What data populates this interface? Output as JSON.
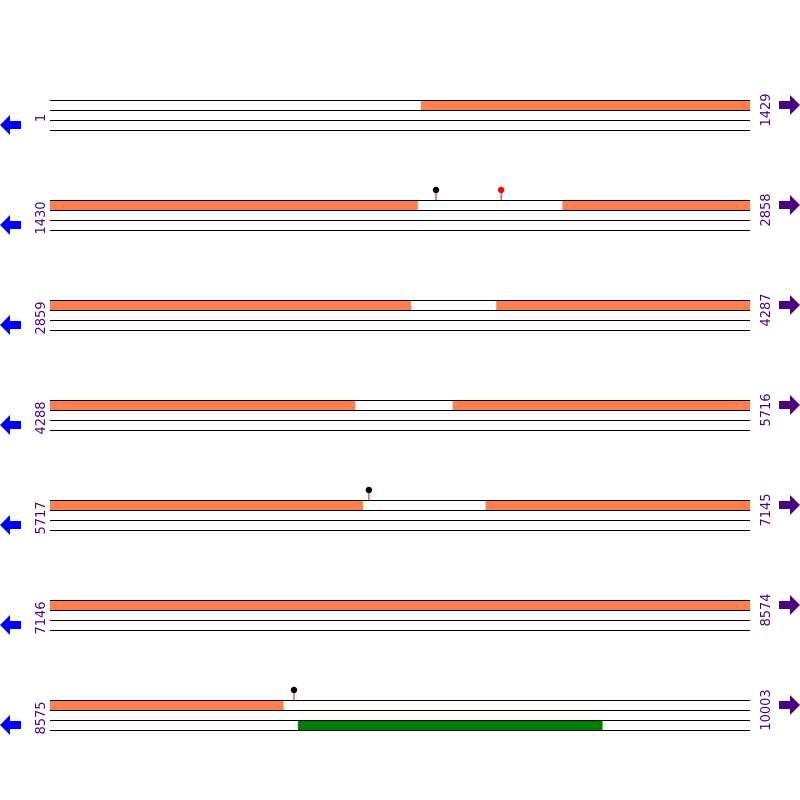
{
  "colors": {
    "feature": "#ff7f50",
    "green_feature": "#008000",
    "reverse_arrow": "#0000ff",
    "forward_arrow": "#4b0082",
    "label": "#4b0082",
    "lollipop_black": "#000000",
    "lollipop_red": "#ff0000",
    "stem": "#ff0000"
  },
  "icons": {
    "left": "arrow-left-icon",
    "right": "arrow-right-icon"
  },
  "rows": [
    {
      "start": "1",
      "end": "1429",
      "orange": [
        [
          758,
          1429
        ]
      ],
      "lollipops": [],
      "green": []
    },
    {
      "start": "1430",
      "end": "2858",
      "orange": [
        [
          1430,
          2180
        ],
        [
          2476,
          2858
        ]
      ],
      "lollipops": [
        {
          "pos": 2218,
          "color": "black"
        },
        {
          "pos": 2351,
          "color": "red"
        }
      ],
      "green": []
    },
    {
      "start": "2859",
      "end": "4287",
      "orange": [
        [
          2859,
          3595
        ],
        [
          3770,
          4287
        ]
      ],
      "lollipops": [],
      "green": []
    },
    {
      "start": "4288",
      "end": "5716",
      "orange": [
        [
          4288,
          4910
        ],
        [
          5110,
          5716
        ]
      ],
      "lollipops": [],
      "green": []
    },
    {
      "start": "5717",
      "end": "7145",
      "orange": [
        [
          5717,
          6355
        ],
        [
          6606,
          7145
        ]
      ],
      "lollipops": [
        {
          "pos": 6368,
          "color": "black"
        }
      ],
      "green": []
    },
    {
      "start": "7146",
      "end": "8574",
      "orange": [
        [
          7146,
          8574
        ]
      ],
      "lollipops": [],
      "green": []
    },
    {
      "start": "8575",
      "end": "10003",
      "orange": [
        [
          8575,
          9051
        ]
      ],
      "lollipops": [
        {
          "pos": 9073,
          "color": "black"
        }
      ],
      "green": [
        [
          9081,
          9702
        ]
      ]
    }
  ]
}
